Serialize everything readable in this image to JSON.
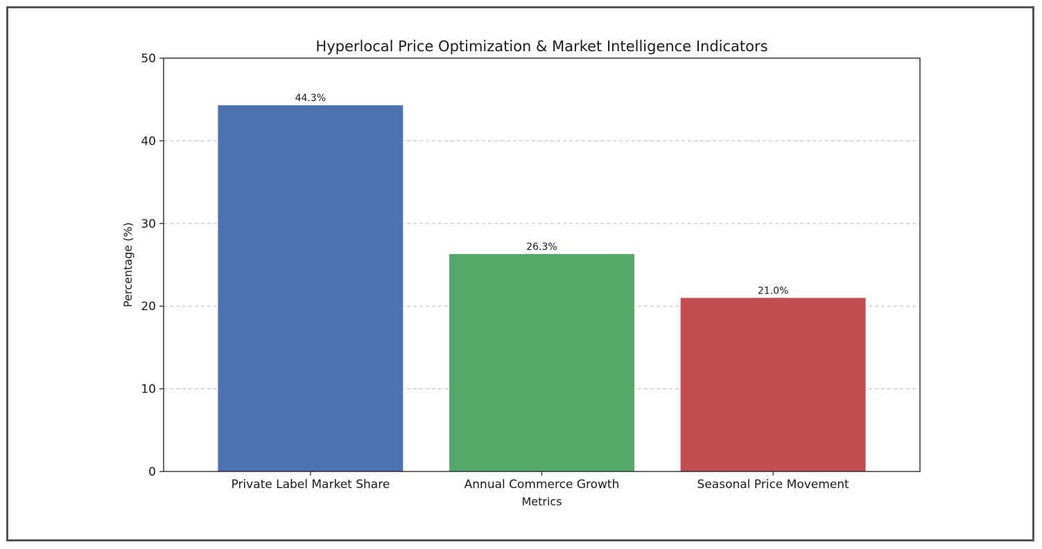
{
  "chart_data": {
    "type": "bar",
    "title": "Hyperlocal Price Optimization & Market Intelligence Indicators",
    "xlabel": "Metrics",
    "ylabel": "Percentage (%)",
    "categories": [
      "Private Label Market Share",
      "Annual Commerce Growth",
      "Seasonal Price Movement"
    ],
    "values": [
      44.3,
      26.3,
      21.0
    ],
    "value_labels": [
      "44.3%",
      "26.3%",
      "21.0%"
    ],
    "ylim": [
      0,
      50
    ],
    "yticks": [
      0,
      10,
      20,
      30,
      40,
      50
    ],
    "ytick_labels": [
      "0",
      "10",
      "20",
      "30",
      "40",
      "50"
    ],
    "grid": "y-dashed",
    "colors": [
      "#4c72b0",
      "#55a868",
      "#c44e52"
    ]
  }
}
